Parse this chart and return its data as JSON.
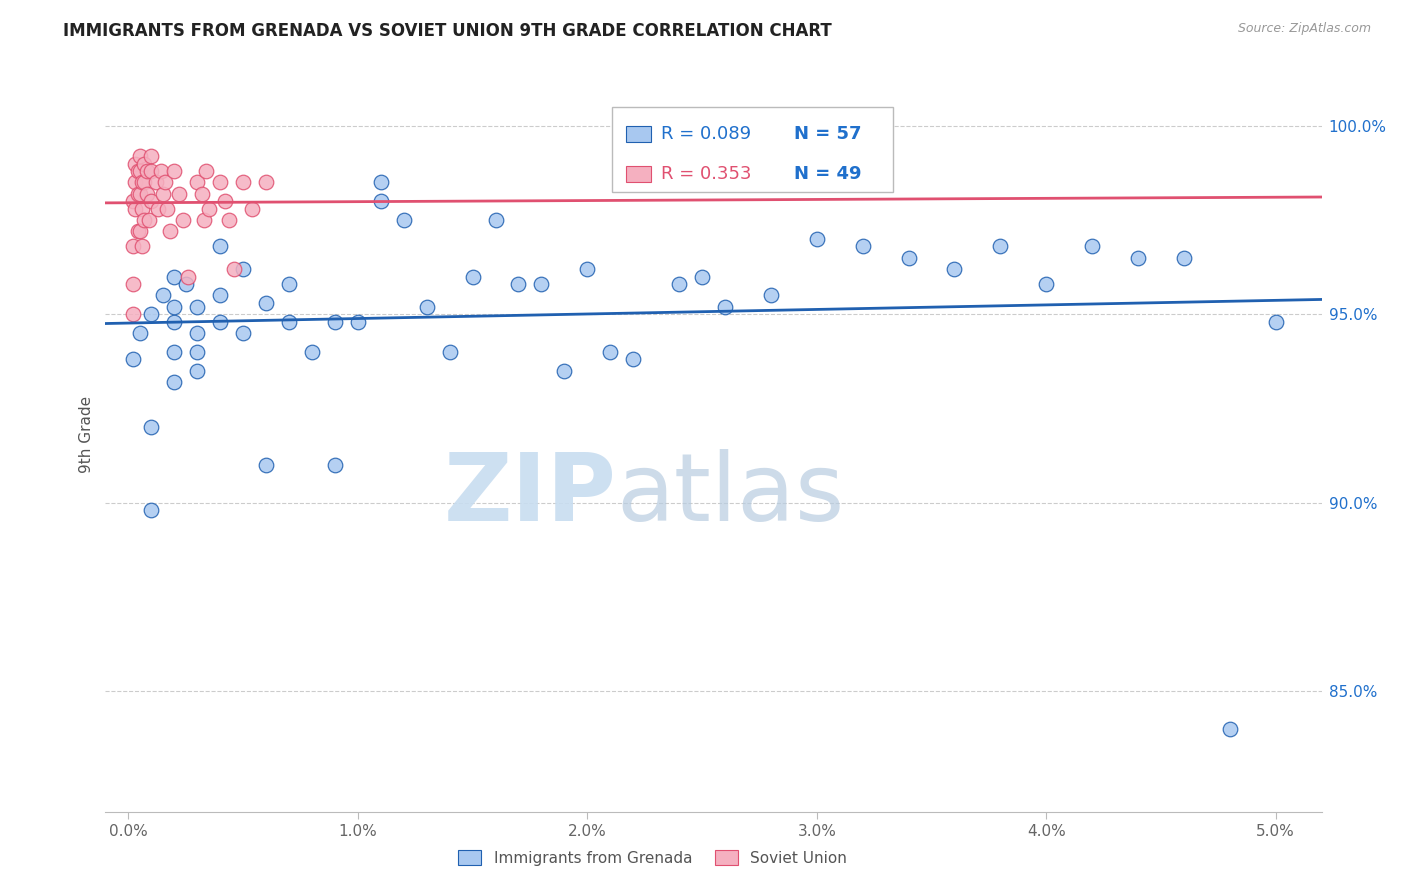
{
  "title": "IMMIGRANTS FROM GRENADA VS SOVIET UNION 9TH GRADE CORRELATION CHART",
  "source": "Source: ZipAtlas.com",
  "ylabel": "9th Grade",
  "yticks": [
    "100.0%",
    "95.0%",
    "90.0%",
    "85.0%"
  ],
  "ytick_vals": [
    1.0,
    0.95,
    0.9,
    0.85
  ],
  "xticks": [
    "0.0%",
    "1.0%",
    "2.0%",
    "3.0%",
    "4.0%",
    "5.0%"
  ],
  "xtick_vals": [
    0.0,
    0.01,
    0.02,
    0.03,
    0.04,
    0.05
  ],
  "xlim": [
    -0.001,
    0.052
  ],
  "ylim": [
    0.818,
    1.018
  ],
  "legend_blue_r": "R = 0.089",
  "legend_blue_n": "N = 57",
  "legend_pink_r": "R = 0.353",
  "legend_pink_n": "N = 49",
  "blue_color": "#a8c8f0",
  "pink_color": "#f5b0c0",
  "line_blue": "#2060b0",
  "line_pink": "#e05070",
  "text_blue": "#2070cc",
  "text_pink": "#e05070",
  "watermark_zip": "ZIP",
  "watermark_atlas": "atlas",
  "bottom_legend_label1": "Immigrants from Grenada",
  "bottom_legend_label2": "Soviet Union",
  "grenada_x": [
    0.0002,
    0.0005,
    0.001,
    0.001,
    0.001,
    0.0015,
    0.002,
    0.002,
    0.002,
    0.002,
    0.002,
    0.0025,
    0.003,
    0.003,
    0.003,
    0.003,
    0.004,
    0.004,
    0.004,
    0.005,
    0.005,
    0.006,
    0.006,
    0.007,
    0.007,
    0.008,
    0.009,
    0.009,
    0.01,
    0.011,
    0.011,
    0.012,
    0.013,
    0.014,
    0.015,
    0.016,
    0.017,
    0.018,
    0.019,
    0.02,
    0.021,
    0.022,
    0.024,
    0.025,
    0.026,
    0.028,
    0.03,
    0.032,
    0.034,
    0.036,
    0.038,
    0.04,
    0.042,
    0.044,
    0.046,
    0.048,
    0.05
  ],
  "grenada_y": [
    0.938,
    0.945,
    0.95,
    0.92,
    0.898,
    0.955,
    0.96,
    0.948,
    0.94,
    0.932,
    0.952,
    0.958,
    0.952,
    0.945,
    0.94,
    0.935,
    0.968,
    0.955,
    0.948,
    0.962,
    0.945,
    0.953,
    0.91,
    0.958,
    0.948,
    0.94,
    0.948,
    0.91,
    0.948,
    0.985,
    0.98,
    0.975,
    0.952,
    0.94,
    0.96,
    0.975,
    0.958,
    0.958,
    0.935,
    0.962,
    0.94,
    0.938,
    0.958,
    0.96,
    0.952,
    0.955,
    0.97,
    0.968,
    0.965,
    0.962,
    0.968,
    0.958,
    0.968,
    0.965,
    0.965,
    0.84,
    0.948
  ],
  "soviet_x": [
    0.0002,
    0.0002,
    0.0002,
    0.0002,
    0.0003,
    0.0003,
    0.0003,
    0.0004,
    0.0004,
    0.0004,
    0.0005,
    0.0005,
    0.0005,
    0.0005,
    0.0006,
    0.0006,
    0.0006,
    0.0007,
    0.0007,
    0.0007,
    0.0008,
    0.0008,
    0.0009,
    0.001,
    0.001,
    0.001,
    0.0012,
    0.0013,
    0.0014,
    0.0015,
    0.0016,
    0.0017,
    0.0018,
    0.002,
    0.0022,
    0.0024,
    0.0026,
    0.003,
    0.0032,
    0.0033,
    0.0034,
    0.0035,
    0.004,
    0.0042,
    0.0044,
    0.0046,
    0.005,
    0.0054,
    0.006
  ],
  "soviet_y": [
    0.98,
    0.968,
    0.958,
    0.95,
    0.99,
    0.985,
    0.978,
    0.988,
    0.982,
    0.972,
    0.992,
    0.988,
    0.982,
    0.972,
    0.985,
    0.978,
    0.968,
    0.99,
    0.985,
    0.975,
    0.988,
    0.982,
    0.975,
    0.992,
    0.988,
    0.98,
    0.985,
    0.978,
    0.988,
    0.982,
    0.985,
    0.978,
    0.972,
    0.988,
    0.982,
    0.975,
    0.96,
    0.985,
    0.982,
    0.975,
    0.988,
    0.978,
    0.985,
    0.98,
    0.975,
    0.962,
    0.985,
    0.978,
    0.985
  ]
}
